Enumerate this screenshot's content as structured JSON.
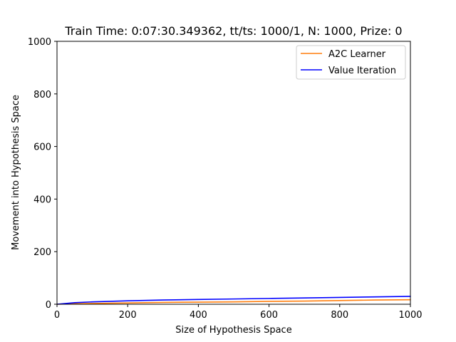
{
  "chart_data": {
    "type": "line",
    "title": "Train Time: 0:07:30.349362, tt/ts: 1000/1, N: 1000, Prize: 0",
    "xlabel": "Size of Hypothesis Space",
    "ylabel": "Movement into Hypothesis Space",
    "xlim": [
      0,
      1000
    ],
    "ylim": [
      0,
      1000
    ],
    "xticks": [
      0,
      200,
      400,
      600,
      800,
      1000
    ],
    "yticks": [
      0,
      200,
      400,
      600,
      800,
      1000
    ],
    "grid": false,
    "legend_position": "top-right",
    "series": [
      {
        "name": "A2C Learner",
        "color": "#ff7f0e",
        "x": [
          0,
          50,
          100,
          200,
          300,
          400,
          500,
          600,
          700,
          800,
          900,
          1000
        ],
        "y": [
          0,
          2,
          3,
          5,
          7,
          8,
          9,
          11,
          12,
          14,
          16,
          17
        ]
      },
      {
        "name": "Value Iteration",
        "color": "#0000ff",
        "x": [
          0,
          50,
          100,
          200,
          300,
          400,
          500,
          600,
          700,
          800,
          900,
          1000
        ],
        "y": [
          0,
          6,
          9,
          13,
          16,
          18,
          20,
          22,
          24,
          26,
          28,
          30
        ]
      }
    ]
  }
}
